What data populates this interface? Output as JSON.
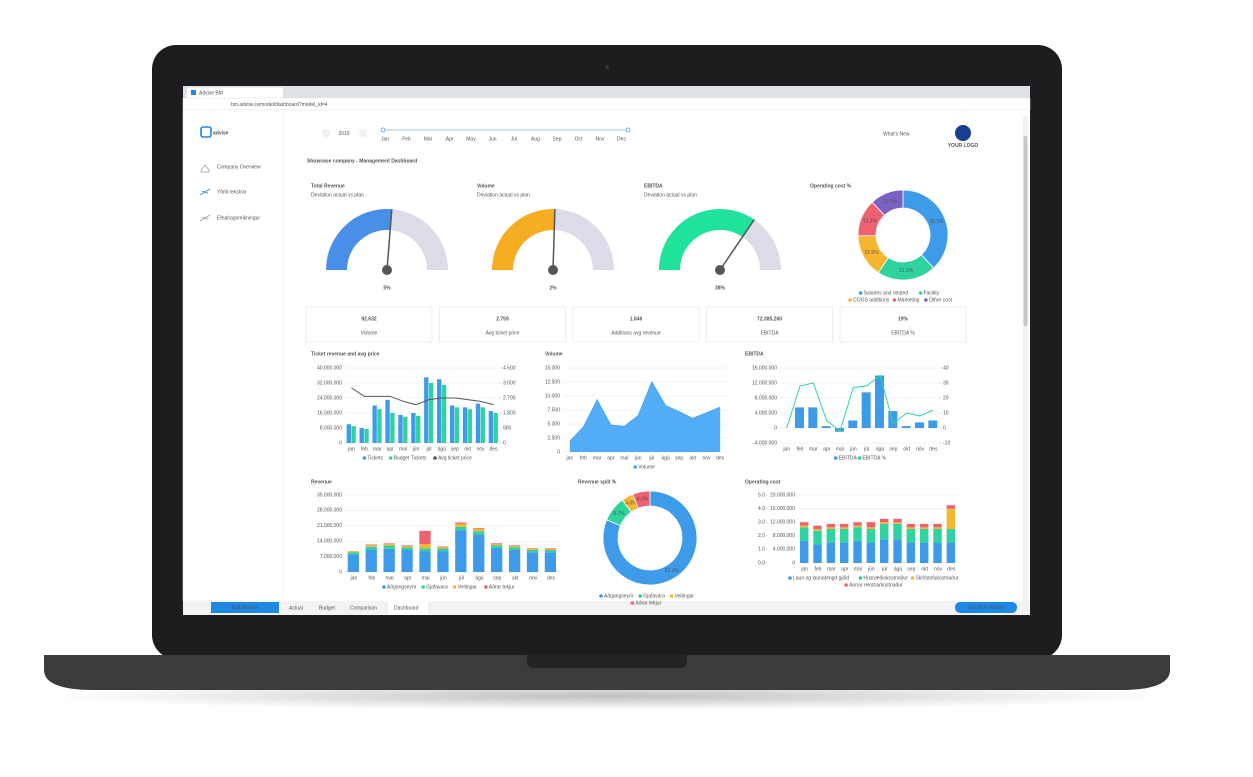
{
  "browser": {
    "tab": "Advise BM",
    "url": "bm.advise.is/model/dashboard?model_id=4"
  },
  "header": {
    "logo": "advise",
    "year": "2019",
    "months": [
      "Jan",
      "Feb",
      "Mar",
      "Apr",
      "May",
      "Jun",
      "Jul",
      "Aug",
      "Sep",
      "Oct",
      "Nov",
      "Dec"
    ],
    "whats_new": "What's New",
    "your_logo": "YOUR LOGO"
  },
  "sidebar": [
    "Company Overview",
    "Yfirlit rekstrar",
    "Efnahagsreikningur"
  ],
  "title": "Showcase company - Management Dashboard",
  "gauges": {
    "range": [
      -100,
      100
    ],
    "items": [
      {
        "title": "Total Revenue",
        "subtitle": "Deviation actual vs plan",
        "value": 5,
        "value_label": "5%",
        "color": "#4a8fe7"
      },
      {
        "title": "Volume",
        "subtitle": "Deviation actual vs plan",
        "value": 2,
        "value_label": "2%",
        "color": "#f7ad22"
      },
      {
        "title": "EBITDA",
        "subtitle": "Deviation actual vs plan",
        "value": 38,
        "value_label": "38%",
        "color": "#1fe39a"
      }
    ]
  },
  "kpis": [
    {
      "value": "92.632",
      "label": "Volume"
    },
    {
      "value": "2.759",
      "label": "Avg ticket price"
    },
    {
      "value": "1.046",
      "label": "Additions avg revenue"
    },
    {
      "value": "72.385.260",
      "label": "EBITDA"
    },
    {
      "value": "19%",
      "label": "EBITDA %"
    }
  ],
  "months": [
    "jan",
    "feb",
    "mar",
    "apr",
    "maí",
    "jún",
    "júl",
    "ágú",
    "sep",
    "okt",
    "nóv",
    "des"
  ],
  "charts": [
    {
      "type": "donut",
      "title": "Operating cost %",
      "categories": [
        "Salaries and related",
        "Facility",
        "COGS additions",
        "Marketing",
        "Other cost"
      ],
      "values": [
        38.1,
        21.1,
        15.5,
        13.3,
        12.0
      ],
      "value_labels": [
        "38.1%",
        "21.1%",
        "15.5%",
        "13.3%",
        "12.0%"
      ],
      "colors": [
        "#3d9be9",
        "#2ed3a0",
        "#f5b731",
        "#ef6070",
        "#7b61c4"
      ]
    },
    {
      "type": "bar",
      "title": "Ticket revenue and avg price",
      "ylim": [
        0,
        40000000
      ],
      "yticks": [
        0,
        {
          "value": 8000000,
          "label": "8.000.000"
        },
        {
          "value": 16000000,
          "label": "16.000.000"
        },
        {
          "value": 24000000,
          "label": "24.000.000"
        },
        {
          "value": 32000000,
          "label": "32.000.000"
        },
        {
          "value": 40000000,
          "label": "40.000.000"
        }
      ],
      "y2lim": [
        0,
        4500
      ],
      "y2ticks": [
        0,
        900,
        {
          "value": 1800,
          "label": "1.800"
        },
        {
          "value": 2700,
          "label": "2.700"
        },
        {
          "value": 3600,
          "label": "3.600"
        },
        {
          "value": 4500,
          "label": "4.500"
        }
      ],
      "series": [
        {
          "name": "Tickets",
          "color": "#3d9be9",
          "values": [
            10000000,
            8000000,
            20000000,
            23000000,
            15000000,
            16000000,
            35000000,
            34000000,
            20000000,
            19000000,
            21000000,
            17000000
          ]
        },
        {
          "name": "Budget Tickets",
          "color": "#2ed3a0",
          "values": [
            9000000,
            7500000,
            18000000,
            16000000,
            14000000,
            14500000,
            32000000,
            31000000,
            19000000,
            18000000,
            19000000,
            16000000
          ]
        },
        {
          "name": "Avg ticket price",
          "color": "#555555",
          "type": "line",
          "axis": "y2",
          "values": [
            3300,
            2800,
            2800,
            2800,
            2500,
            2300,
            2600,
            2700,
            2700,
            2600,
            2500,
            2300
          ]
        }
      ]
    },
    {
      "type": "area",
      "title": "Volume",
      "ylim": [
        0,
        15000
      ],
      "yticks": [
        0,
        {
          "value": 2500,
          "label": "2.500"
        },
        {
          "value": 5000,
          "label": "5.000"
        },
        {
          "value": 7500,
          "label": "7.500"
        },
        {
          "value": 10000,
          "label": "10.000"
        },
        {
          "value": 12500,
          "label": "12.500"
        },
        {
          "value": 15000,
          "label": "15.000"
        }
      ],
      "series": [
        {
          "name": "Volume",
          "color": "#4aa8f5",
          "values": [
            1900,
            4500,
            9300,
            4800,
            4600,
            6500,
            12500,
            8300,
            7200,
            6000,
            7000,
            8000
          ]
        }
      ]
    },
    {
      "type": "bar",
      "title": "EBITDA",
      "ylim": [
        -4000000,
        16000000
      ],
      "yticks": [
        {
          "value": -4000000,
          "label": "-4.000.000"
        },
        0,
        {
          "value": 4000000,
          "label": "4.000.000"
        },
        {
          "value": 8000000,
          "label": "8.000.000"
        },
        {
          "value": 12000000,
          "label": "12.000.000"
        },
        {
          "value": 16000000,
          "label": "16.000.000"
        }
      ],
      "y2lim": [
        -10,
        40
      ],
      "y2ticks": [
        -10,
        0,
        10,
        20,
        30,
        40
      ],
      "series": [
        {
          "name": "EBITDA",
          "color": "#3d9be9",
          "values": [
            0,
            5500000,
            5500000,
            500000,
            -1000000,
            2000000,
            9500000,
            14000000,
            4500000,
            500000,
            1500000,
            2000000
          ]
        },
        {
          "name": "EBITDA %",
          "color": "#2ed3a0",
          "type": "line",
          "axis": "y2",
          "values": [
            0,
            28,
            30,
            5,
            -2,
            27,
            28,
            35,
            3,
            10,
            8,
            12
          ]
        }
      ]
    },
    {
      "type": "bar",
      "title": "Revenue",
      "stacked": true,
      "ylim": [
        0,
        35000000
      ],
      "yticks": [
        0,
        {
          "value": 7000000,
          "label": "7.000.000"
        },
        {
          "value": 14000000,
          "label": "14.000.000"
        },
        {
          "value": 21000000,
          "label": "21.000.000"
        },
        {
          "value": 28000000,
          "label": "28.000.000"
        },
        {
          "value": 35000000,
          "label": "35.000.000"
        }
      ],
      "series": [
        {
          "name": "Aðgangseyrir",
          "color": "#3d9be9",
          "values": [
            8000000,
            10000000,
            10500000,
            10000000,
            9500000,
            9500000,
            19000000,
            17000000,
            11000000,
            10000000,
            9000000,
            9000000
          ]
        },
        {
          "name": "Gjafavara",
          "color": "#2ed3a0",
          "values": [
            1000000,
            1500000,
            1500000,
            1200000,
            1200000,
            1200000,
            1500000,
            1500000,
            1200000,
            1200000,
            1000000,
            1000000
          ]
        },
        {
          "name": "Veitingar",
          "color": "#f5b731",
          "values": [
            500000,
            700000,
            700000,
            600000,
            2000000,
            600000,
            1500000,
            1200000,
            600000,
            600000,
            500000,
            500000
          ]
        },
        {
          "name": "Aðrar tekjur",
          "color": "#ef6070",
          "values": [
            0,
            300000,
            300000,
            300000,
            6000000,
            300000,
            500000,
            300000,
            300000,
            300000,
            300000,
            300000
          ]
        }
      ]
    },
    {
      "type": "donut",
      "title": "Revenue split %",
      "categories": [
        "Aðgangseyrir",
        "Gjafavara",
        "Veitingar",
        "Aðrar tekjur"
      ],
      "values": [
        81.3,
        8.7,
        4.0,
        6.0
      ],
      "value_labels": [
        "81.3%",
        "8.7%",
        "4.0%",
        "6.0%"
      ],
      "colors": [
        "#3d9be9",
        "#2ed3a0",
        "#f5b731",
        "#ef6070"
      ]
    },
    {
      "type": "bar",
      "title": "Operating cost",
      "stacked": true,
      "ylim": [
        0,
        20000000
      ],
      "yticks": [
        0,
        {
          "value": 4000000,
          "label": "4.000.000"
        },
        {
          "value": 8000000,
          "label": "8.000.000"
        },
        {
          "value": 12000000,
          "label": "12.000.000"
        },
        {
          "value": 16000000,
          "label": "16.000.000"
        },
        {
          "value": 20000000,
          "label": "20.000.000"
        }
      ],
      "y2lim": [
        0,
        5
      ],
      "y2ticks": [
        {
          "value": 0,
          "label": "0.0"
        },
        {
          "value": 1,
          "label": "1.0"
        },
        {
          "value": 2,
          "label": "2.0"
        },
        {
          "value": 3,
          "label": "3.0"
        },
        {
          "value": 4,
          "label": "4.0"
        },
        {
          "value": 5,
          "label": "5.0"
        }
      ],
      "y2_position": "left",
      "series": [
        {
          "name": "Laun og launatengd gjöld",
          "color": "#3d9be9",
          "values": [
            6500000,
            5500000,
            6000000,
            6000000,
            6500000,
            6000000,
            7000000,
            7000000,
            6000000,
            6000000,
            6000000,
            6000000
          ]
        },
        {
          "name": "Húsnæðiskostnaður",
          "color": "#2ed3a0",
          "values": [
            4000000,
            4000000,
            4000000,
            4000000,
            4000000,
            4000000,
            4500000,
            4500000,
            4000000,
            4000000,
            4000000,
            4000000
          ]
        },
        {
          "name": "Skrifstofukostnaður",
          "color": "#f5b731",
          "values": [
            500000,
            500000,
            500000,
            500000,
            500000,
            500000,
            500000,
            500000,
            500000,
            500000,
            500000,
            6000000
          ]
        },
        {
          "name": "Annar rekstrarkostnaður",
          "color": "#ef6070",
          "values": [
            1000000,
            1000000,
            1000000,
            1000000,
            1000000,
            1500000,
            1000000,
            1000000,
            1000000,
            1000000,
            1000000,
            1000000
          ]
        }
      ]
    }
  ],
  "footer": {
    "edit": "Edit Monitor",
    "tabs": [
      "Actual",
      "Budget",
      "Comparison",
      "Dashboard"
    ],
    "pdf": "Get PDF Report"
  }
}
